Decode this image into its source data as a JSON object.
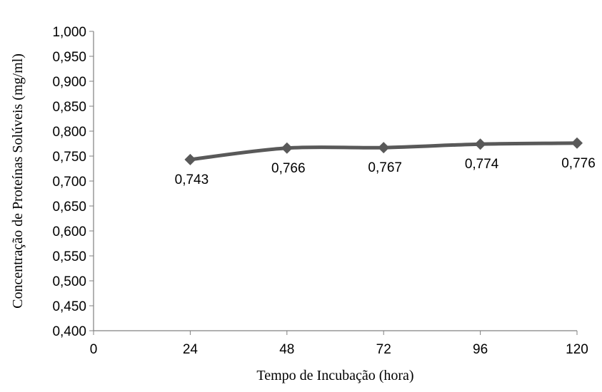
{
  "chart_data": {
    "type": "line",
    "title": "",
    "xlabel": "Tempo de Incubação (hora)",
    "ylabel": "Concentração de Proteínas Solúveis (mg/ml)",
    "x": [
      24,
      48,
      72,
      96,
      120
    ],
    "series": [
      {
        "values": [
          0.743,
          0.766,
          0.767,
          0.774,
          0.776
        ]
      }
    ],
    "data_labels": [
      "0,743",
      "0,766",
      "0,767",
      "0,774",
      "0,776"
    ],
    "xlim": [
      0,
      120
    ],
    "ylim": [
      0.4,
      1.0
    ],
    "x_ticks": [
      "0",
      "24",
      "48",
      "72",
      "96",
      "120"
    ],
    "y_ticks": [
      "0,400",
      "0,450",
      "0,500",
      "0,550",
      "0,600",
      "0,650",
      "0,700",
      "0,750",
      "0,800",
      "0,850",
      "0,900",
      "0,950",
      "1,000"
    ],
    "grid": false,
    "legend": "none",
    "marker": "diamond",
    "line_smooth": true,
    "colors": {
      "series": "#595959",
      "axis": "#808080"
    }
  }
}
